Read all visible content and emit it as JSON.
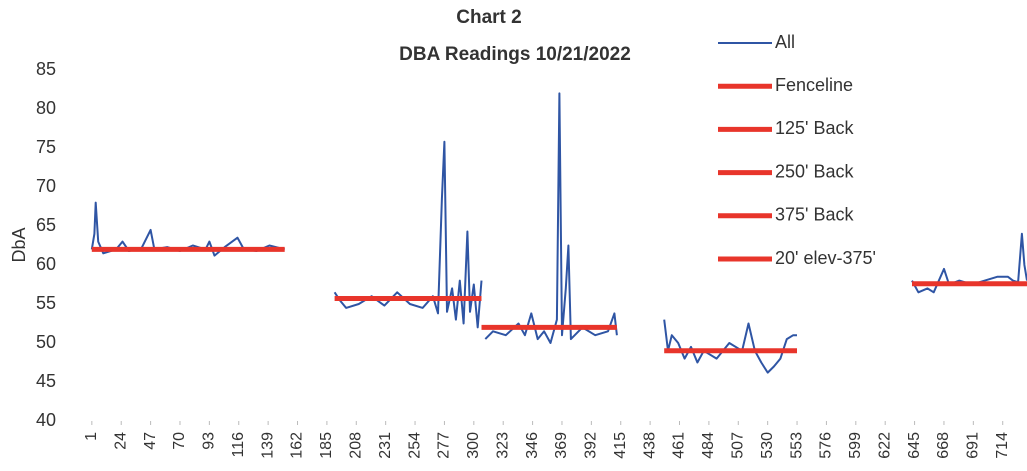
{
  "chart_data": {
    "type": "line",
    "title": "Chart 2",
    "subtitle": "DBA Readings 10/21/2022",
    "y_label": "DbA",
    "ylim": [
      40,
      85
    ],
    "yticks": [
      40,
      45,
      50,
      55,
      60,
      65,
      70,
      75,
      80,
      85
    ],
    "xlim": [
      -2,
      733
    ],
    "xticks": [
      1,
      24,
      47,
      70,
      93,
      116,
      139,
      162,
      185,
      208,
      231,
      254,
      277,
      300,
      323,
      346,
      369,
      392,
      415,
      438,
      461,
      484,
      507,
      530,
      553,
      576,
      599,
      622,
      645,
      668,
      691,
      714
    ],
    "legend": "top-right",
    "series": [
      {
        "name": "All",
        "color": "#2f55a4",
        "width": 2,
        "x": [
          1,
          3,
          4,
          6,
          10,
          20,
          25,
          30,
          40,
          47,
          50,
          60,
          70,
          80,
          90,
          93,
          97,
          105,
          115,
          120,
          130,
          140,
          152,
          170,
          191,
          195,
          200,
          210,
          220,
          230,
          240,
          250,
          260,
          268,
          272,
          275,
          277,
          279,
          283,
          286,
          289,
          292,
          295,
          297,
          300,
          303,
          306,
          307,
          309,
          315,
          325,
          335,
          340,
          345,
          350,
          355,
          360,
          365,
          367,
          369,
          372,
          374,
          376,
          385,
          395,
          405,
          410,
          412,
          430,
          449,
          452,
          455,
          460,
          465,
          470,
          475,
          480,
          490,
          500,
          510,
          515,
          520,
          525,
          530,
          535,
          540,
          545,
          550,
          553,
          600,
          643,
          648,
          655,
          660,
          668,
          672,
          680,
          690,
          700,
          710,
          718,
          722,
          726,
          729,
          731,
          733
        ],
        "values": [
          62,
          64,
          68,
          63,
          61.5,
          62,
          63,
          61.8,
          62.2,
          64.5,
          62,
          62.3,
          61.8,
          62.5,
          62,
          63,
          61.2,
          62.3,
          63.5,
          62,
          61.8,
          62.5,
          62,
          null,
          56.5,
          55.5,
          54.5,
          55,
          56,
          54.8,
          56.5,
          55,
          54.5,
          56,
          53.8,
          68.5,
          75.8,
          54,
          57,
          53,
          58,
          52.5,
          64.3,
          54,
          57.5,
          52,
          58,
          null,
          50.5,
          51.5,
          51,
          52.5,
          51,
          53.8,
          50.5,
          51.5,
          50,
          53,
          82,
          51,
          57,
          62.5,
          50.5,
          52,
          51,
          51.5,
          53.8,
          51,
          null,
          53,
          49,
          51,
          50,
          48,
          49.5,
          47.5,
          49,
          48,
          50,
          49,
          52.5,
          49,
          47.5,
          46.2,
          47,
          48,
          50.5,
          51,
          51,
          null,
          58,
          56.5,
          57,
          56.5,
          59.5,
          57.5,
          58,
          57.5,
          58,
          58.5,
          58.5,
          58,
          57.8,
          64,
          60,
          58
        ]
      },
      {
        "name": "Fenceline",
        "color": "#e8352b",
        "width": 5,
        "x": [
          1,
          152
        ],
        "values": [
          62,
          62
        ]
      },
      {
        "name": "125' Back",
        "color": "#e8352b",
        "width": 5,
        "x": [
          191,
          306
        ],
        "values": [
          55.7,
          55.7
        ]
      },
      {
        "name": "250' Back",
        "color": "#e8352b",
        "width": 5,
        "x": [
          306,
          412
        ],
        "values": [
          52,
          52
        ]
      },
      {
        "name": "375' Back",
        "color": "#e8352b",
        "width": 5,
        "x": [
          449,
          553
        ],
        "values": [
          49,
          49
        ]
      },
      {
        "name": "20' elev-375'",
        "color": "#e8352b",
        "width": 5,
        "x": [
          643,
          733
        ],
        "values": [
          57.6,
          57.6
        ]
      }
    ]
  }
}
